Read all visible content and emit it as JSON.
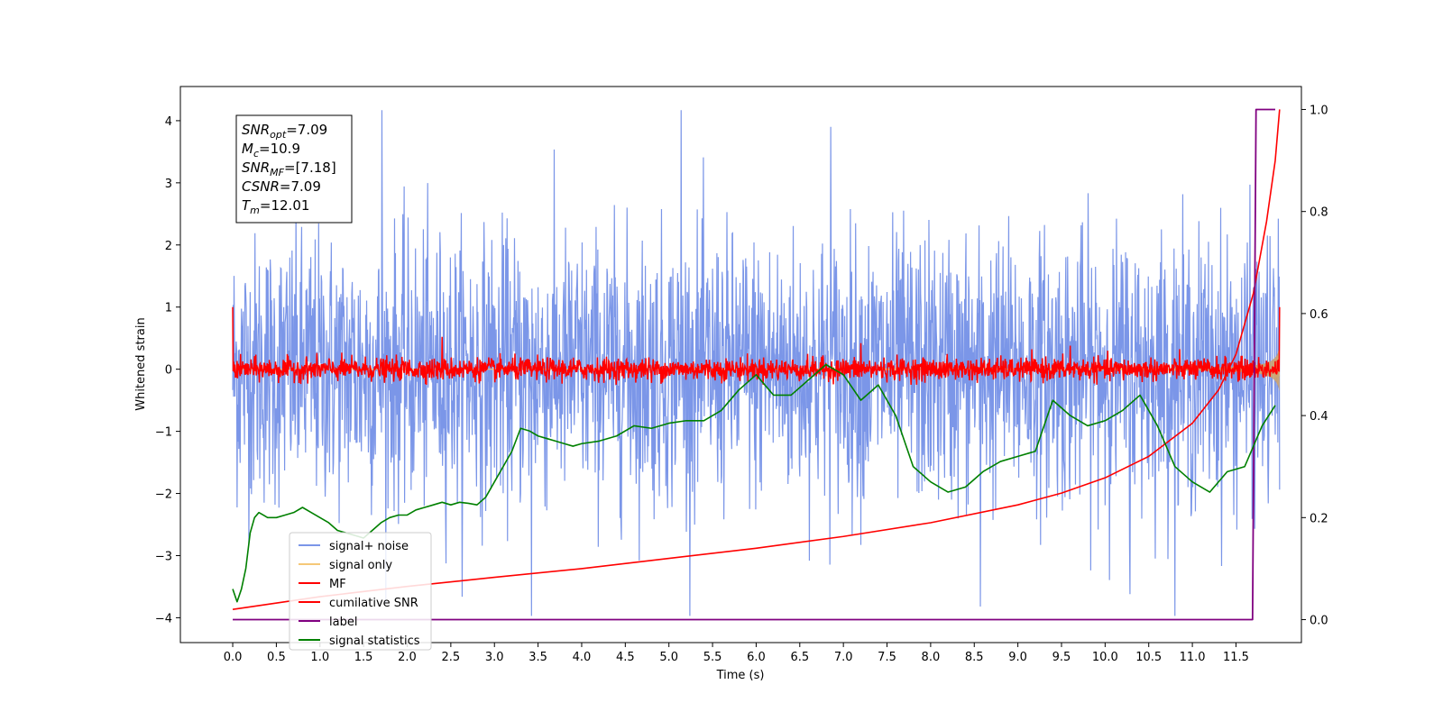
{
  "chart_data": {
    "type": "line",
    "title": "",
    "xlabel": "Time (s)",
    "ylabel": "Whitened strain",
    "xlim": [
      -0.6,
      12.25
    ],
    "ylim": [
      -4.4,
      4.55
    ],
    "y2lim": [
      -0.045,
      1.045
    ],
    "xticks": [
      0.0,
      0.5,
      1.0,
      1.5,
      2.0,
      2.5,
      3.0,
      3.5,
      4.0,
      4.5,
      5.0,
      5.5,
      6.0,
      6.5,
      7.0,
      7.5,
      8.0,
      8.5,
      9.0,
      9.5,
      10.0,
      10.5,
      11.0,
      11.5
    ],
    "xtick_labels": [
      "0.0",
      "0.5",
      "1.0",
      "1.5",
      "2.0",
      "2.5",
      "3.0",
      "3.5",
      "4.0",
      "4.5",
      "5.0",
      "5.5",
      "6.0",
      "6.5",
      "7.0",
      "7.5",
      "8.0",
      "8.5",
      "9.0",
      "9.5",
      "10.0",
      "10.5",
      "11.0",
      "11.5"
    ],
    "yticks": [
      -4,
      -3,
      -2,
      -1,
      0,
      1,
      2,
      3,
      4
    ],
    "ytick_labels": [
      "−4",
      "−3",
      "−2",
      "−1",
      "0",
      "1",
      "2",
      "3",
      "4"
    ],
    "y2ticks": [
      0.0,
      0.2,
      0.4,
      0.6,
      0.8,
      1.0
    ],
    "y2tick_labels": [
      "0.0",
      "0.2",
      "0.4",
      "0.6",
      "0.8",
      "1.0"
    ],
    "grid": false,
    "legend_position": "lower-left",
    "annotation": {
      "lines": [
        {
          "var": "SNR",
          "sub": "opt",
          "rest": "=7.09"
        },
        {
          "var": "M",
          "sub": "c",
          "rest": "=10.9"
        },
        {
          "var": "SNR",
          "sub": "MF",
          "rest": "=[7.18]"
        },
        {
          "var": "CSNR",
          "sub": "",
          "rest": "=7.09"
        },
        {
          "var": "T",
          "sub": "m",
          "rest": "=12.01"
        }
      ]
    },
    "series": [
      {
        "name": "signal+ noise",
        "color": "#7b96e8",
        "axis": "left",
        "kind": "noise",
        "x_range": [
          0.0,
          12.0
        ],
        "amplitude_rms": 1.2,
        "offset": 0.0,
        "peak_values": [
          4.17,
          -3.97,
          4.17,
          3.9,
          -3.82,
          -3.62
        ]
      },
      {
        "name": "signal only",
        "color": "#f5c878",
        "axis": "left",
        "kind": "chirp",
        "x_range": [
          0.0,
          12.0
        ],
        "envelope_start": 0.0,
        "envelope_end": 0.55
      },
      {
        "name": "MF",
        "color": "#ff0000",
        "axis": "left",
        "kind": "noise",
        "x_range": [
          0.0,
          12.0
        ],
        "amplitude_rms": 0.09,
        "offset": 0.0,
        "peak_values": [
          0.52,
          -0.22,
          0.42,
          0.38
        ],
        "endpoints": [
          1.0,
          1.0
        ]
      },
      {
        "name": "cumilative SNR",
        "color": "#ff0000",
        "axis": "right",
        "x": [
          0.0,
          1.0,
          2.0,
          3.0,
          4.0,
          5.0,
          6.0,
          7.0,
          8.0,
          9.0,
          9.5,
          10.0,
          10.5,
          11.0,
          11.3,
          11.5,
          11.7,
          11.85,
          11.95,
          12.0
        ],
        "y": [
          0.02,
          0.045,
          0.065,
          0.083,
          0.1,
          0.12,
          0.14,
          0.163,
          0.19,
          0.225,
          0.248,
          0.278,
          0.32,
          0.385,
          0.45,
          0.52,
          0.64,
          0.78,
          0.9,
          1.0
        ]
      },
      {
        "name": "label",
        "color": "#800080",
        "axis": "right",
        "x": [
          0.0,
          11.69,
          11.73,
          11.95
        ],
        "y": [
          0.0,
          0.0,
          1.0,
          1.0
        ]
      },
      {
        "name": "signal statistics",
        "color": "#008000",
        "axis": "right",
        "x": [
          0.0,
          0.05,
          0.1,
          0.15,
          0.2,
          0.25,
          0.3,
          0.35,
          0.4,
          0.5,
          0.6,
          0.7,
          0.8,
          0.9,
          1.0,
          1.1,
          1.2,
          1.3,
          1.4,
          1.5,
          1.6,
          1.7,
          1.8,
          1.9,
          2.0,
          2.1,
          2.2,
          2.3,
          2.4,
          2.5,
          2.6,
          2.7,
          2.8,
          2.9,
          3.0,
          3.1,
          3.2,
          3.3,
          3.4,
          3.5,
          3.6,
          3.7,
          3.8,
          3.9,
          4.0,
          4.2,
          4.4,
          4.6,
          4.8,
          5.0,
          5.2,
          5.4,
          5.6,
          5.8,
          6.0,
          6.2,
          6.4,
          6.6,
          6.8,
          7.0,
          7.2,
          7.4,
          7.6,
          7.8,
          8.0,
          8.2,
          8.4,
          8.6,
          8.8,
          9.0,
          9.2,
          9.4,
          9.6,
          9.8,
          10.0,
          10.2,
          10.4,
          10.6,
          10.8,
          11.0,
          11.2,
          11.4,
          11.6,
          11.8,
          11.95
        ],
        "y": [
          0.06,
          0.035,
          0.06,
          0.1,
          0.17,
          0.2,
          0.21,
          0.205,
          0.2,
          0.2,
          0.205,
          0.21,
          0.22,
          0.21,
          0.2,
          0.19,
          0.175,
          0.17,
          0.165,
          0.16,
          0.175,
          0.19,
          0.2,
          0.205,
          0.205,
          0.215,
          0.22,
          0.225,
          0.23,
          0.225,
          0.23,
          0.228,
          0.225,
          0.24,
          0.27,
          0.3,
          0.33,
          0.375,
          0.37,
          0.36,
          0.355,
          0.35,
          0.345,
          0.34,
          0.345,
          0.35,
          0.36,
          0.38,
          0.375,
          0.385,
          0.39,
          0.39,
          0.41,
          0.45,
          0.48,
          0.44,
          0.44,
          0.47,
          0.5,
          0.48,
          0.43,
          0.46,
          0.4,
          0.3,
          0.27,
          0.25,
          0.26,
          0.29,
          0.31,
          0.32,
          0.33,
          0.43,
          0.4,
          0.38,
          0.39,
          0.41,
          0.44,
          0.38,
          0.3,
          0.27,
          0.25,
          0.29,
          0.3,
          0.38,
          0.42
        ]
      }
    ]
  }
}
